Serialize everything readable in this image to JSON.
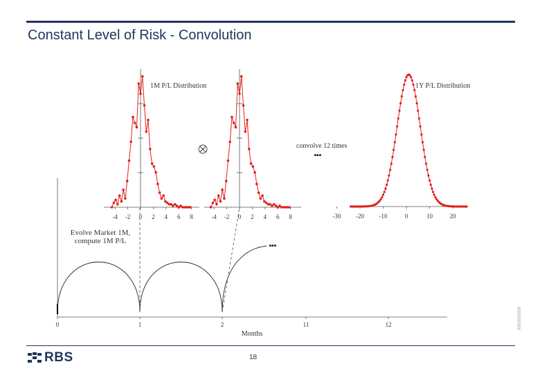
{
  "slide": {
    "title": "Constant Level of Risk - Convolution",
    "page_number": "18",
    "reference_code": "IRBS000000",
    "logo_text": "RBS"
  },
  "colors": {
    "navy": "#1f3559",
    "series_red": "#e0201b",
    "dark_red": "#b21b1b",
    "curve": "#222222",
    "dashed_line": "#3a4fa0"
  },
  "diagram": {
    "convolution_symbol": "⊗",
    "convolve_label": "convolve 12 times",
    "ellipsis": "•••",
    "timeline_note_line1": "Evolve Market 1M,",
    "timeline_note_line2": "compute 1M P/L",
    "timeline": {
      "xlabel": "Months",
      "ticks": [
        "0",
        "1",
        "2",
        "11",
        "12"
      ]
    }
  },
  "chart_data": [
    {
      "type": "line",
      "title": "1M P/L Distribution",
      "xlabel": "",
      "ylabel": "",
      "xlim": [
        -5,
        9
      ],
      "x_ticks": [
        "-4",
        "-2",
        "0",
        "2",
        "4",
        "6",
        "8"
      ],
      "series": [
        {
          "x": [
            -4.5,
            -4.2,
            -3.9,
            -3.6,
            -3.3,
            -3.0,
            -2.7,
            -2.4,
            -2.1,
            -1.8,
            -1.5,
            -1.2,
            -0.9,
            -0.6,
            -0.3,
            0.0,
            0.3,
            0.6,
            0.9,
            1.2,
            1.5,
            1.8,
            2.1,
            2.4,
            2.7,
            3.0,
            3.3,
            3.6,
            3.9,
            4.2,
            4.5,
            4.8,
            5.1,
            5.4,
            5.7,
            6.0,
            6.3,
            6.6,
            6.9,
            7.2,
            7.5,
            7.8
          ],
          "y": [
            0.0,
            0.03,
            0.05,
            0.02,
            0.08,
            0.04,
            0.12,
            0.06,
            0.18,
            0.32,
            0.45,
            0.62,
            0.58,
            0.55,
            0.85,
            0.78,
            0.9,
            0.7,
            0.52,
            0.6,
            0.4,
            0.3,
            0.28,
            0.24,
            0.16,
            0.1,
            0.06,
            0.08,
            0.04,
            0.03,
            0.02,
            0.02,
            0.01,
            0.02,
            0.01,
            0.0,
            0.01,
            0.0,
            0.0,
            0.0,
            0.0,
            0.0
          ]
        }
      ]
    },
    {
      "type": "line",
      "title": "",
      "xlabel": "",
      "ylabel": "",
      "xlim": [
        -5,
        9
      ],
      "x_ticks": [
        "-4",
        "-2",
        "0",
        "2",
        "4",
        "6",
        "8"
      ],
      "series": [
        {
          "x": [
            -4.5,
            -4.2,
            -3.9,
            -3.6,
            -3.3,
            -3.0,
            -2.7,
            -2.4,
            -2.1,
            -1.8,
            -1.5,
            -1.2,
            -0.9,
            -0.6,
            -0.3,
            0.0,
            0.3,
            0.6,
            0.9,
            1.2,
            1.5,
            1.8,
            2.1,
            2.4,
            2.7,
            3.0,
            3.3,
            3.6,
            3.9,
            4.2,
            4.5,
            4.8,
            5.1,
            5.4,
            5.7,
            6.0,
            6.3,
            6.6,
            6.9,
            7.2,
            7.5,
            7.8
          ],
          "y": [
            0.0,
            0.03,
            0.05,
            0.02,
            0.08,
            0.04,
            0.12,
            0.06,
            0.18,
            0.32,
            0.45,
            0.62,
            0.58,
            0.55,
            0.85,
            0.78,
            0.9,
            0.7,
            0.52,
            0.6,
            0.4,
            0.3,
            0.28,
            0.24,
            0.16,
            0.1,
            0.06,
            0.08,
            0.04,
            0.03,
            0.02,
            0.02,
            0.01,
            0.02,
            0.01,
            0.0,
            0.01,
            0.0,
            0.0,
            0.0,
            0.0,
            0.0
          ]
        }
      ]
    },
    {
      "type": "line",
      "title": "1Y P/L Distribution",
      "xlabel": "",
      "ylabel": "",
      "xlim": [
        -33,
        25
      ],
      "x_ticks": [
        "-30",
        "-20",
        "-10",
        "0",
        "10",
        "20"
      ],
      "mean": 1.0,
      "std": 5.0
    }
  ]
}
